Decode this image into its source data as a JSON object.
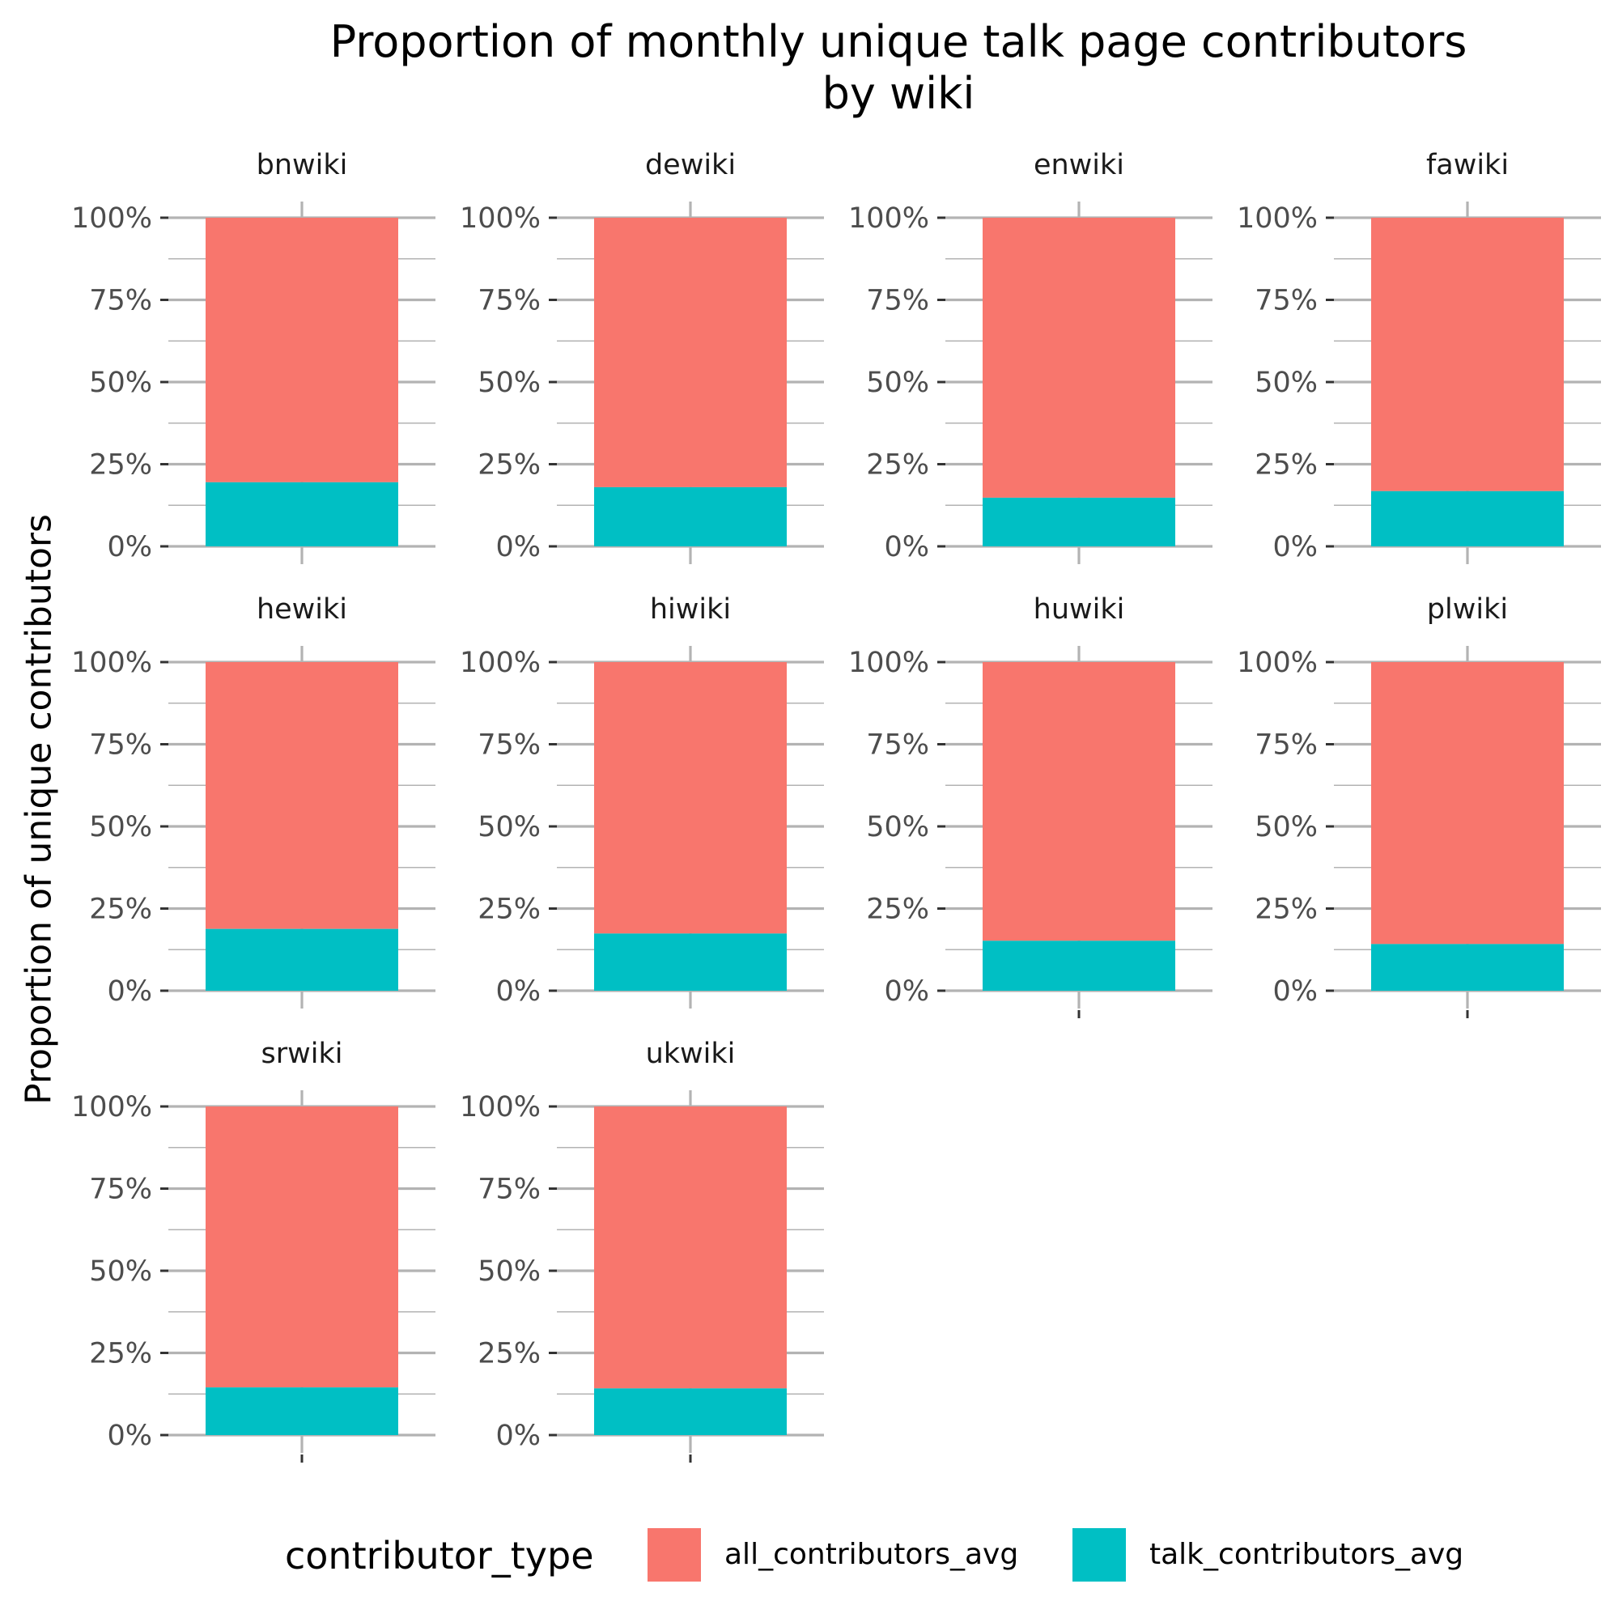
{
  "chart_data": {
    "type": "bar",
    "title": "Proportion of monthly unique talk page contributors\nby wiki",
    "title_lines": [
      "Proportion of monthly unique talk page contributors",
      "by wiki"
    ],
    "ylabel": "Proportion of unique contributors",
    "xlabel": "",
    "ylim": [
      0,
      1
    ],
    "y_ticks": [
      "0%",
      "25%",
      "50%",
      "75%",
      "100%"
    ],
    "y_tick_values": [
      0,
      0.25,
      0.5,
      0.75,
      1
    ],
    "stacked": true,
    "grid": true,
    "legend": {
      "title": "contributor_type",
      "position": "bottom",
      "entries": [
        "all_contributors_avg",
        "talk_contributors_avg"
      ]
    },
    "colors": {
      "all_contributors_avg": "#F8766D",
      "talk_contributors_avg": "#00BFC4"
    },
    "facets": [
      "bnwiki",
      "dewiki",
      "enwiki",
      "fawiki",
      "hewiki",
      "hiwiki",
      "huwiki",
      "plwiki",
      "srwiki",
      "ukwiki"
    ],
    "series": [
      {
        "name": "talk_contributors_avg",
        "values": [
          0.195,
          0.18,
          0.148,
          0.168,
          0.188,
          0.174,
          0.152,
          0.142,
          0.145,
          0.142
        ]
      },
      {
        "name": "all_contributors_avg",
        "values": [
          0.805,
          0.82,
          0.852,
          0.832,
          0.812,
          0.826,
          0.848,
          0.858,
          0.855,
          0.858
        ]
      }
    ]
  }
}
